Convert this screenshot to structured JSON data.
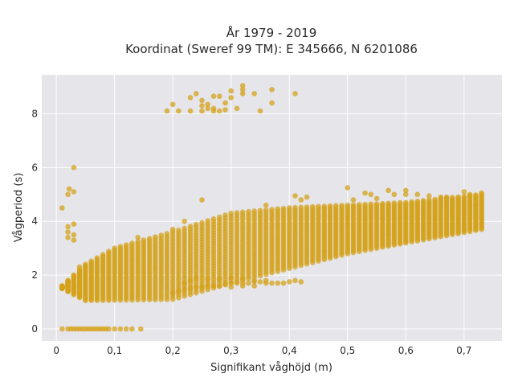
{
  "chart_data": {
    "type": "scatter",
    "title_line1": "År 1979 - 2019",
    "title_line2": "Koordinat (Sweref 99 TM): E 345666, N 6201086",
    "xlabel": "Signifikant våghöjd (m)",
    "ylabel": "Vågperiod (s)",
    "xlim": [
      -0.025,
      0.765
    ],
    "ylim": [
      -0.45,
      9.45
    ],
    "x_ticks": [
      0,
      0.1,
      0.2,
      0.3,
      0.4,
      0.5,
      0.6,
      0.7
    ],
    "x_tick_labels": [
      "0",
      "0,1",
      "0,2",
      "0,3",
      "0,4",
      "0,5",
      "0,6",
      "0,7"
    ],
    "y_ticks": [
      0,
      2,
      4,
      6,
      8
    ],
    "y_tick_labels": [
      "0",
      "2",
      "4",
      "6",
      "8"
    ],
    "grid": true,
    "marker_color": "#D4A21A",
    "plot_background": "#E5E5EA",
    "point_groups": [
      {
        "x_range": [
          0.01,
          0.73
        ],
        "x_step": 0.01,
        "lower_bound": [
          [
            0.01,
            1.5
          ],
          [
            0.05,
            1.05
          ],
          [
            0.2,
            1.1
          ],
          [
            0.3,
            1.7
          ],
          [
            0.5,
            2.8
          ],
          [
            0.6,
            3.2
          ],
          [
            0.73,
            3.7
          ]
        ],
        "upper_bound": [
          [
            0.01,
            1.6
          ],
          [
            0.05,
            2.4
          ],
          [
            0.1,
            3.0
          ],
          [
            0.2,
            3.6
          ],
          [
            0.3,
            4.3
          ],
          [
            0.4,
            4.5
          ],
          [
            0.5,
            4.6
          ],
          [
            0.6,
            4.7
          ],
          [
            0.73,
            5.0
          ]
        ],
        "points_per_column": 26
      }
    ],
    "points": [
      [
        0.01,
        0.0
      ],
      [
        0.02,
        0.0
      ],
      [
        0.025,
        0.0
      ],
      [
        0.03,
        0.0
      ],
      [
        0.035,
        0.0
      ],
      [
        0.04,
        0.0
      ],
      [
        0.045,
        0.0
      ],
      [
        0.05,
        0.0
      ],
      [
        0.055,
        0.0
      ],
      [
        0.06,
        0.0
      ],
      [
        0.065,
        0.0
      ],
      [
        0.07,
        0.0
      ],
      [
        0.075,
        0.0
      ],
      [
        0.08,
        0.0
      ],
      [
        0.085,
        0.0
      ],
      [
        0.09,
        0.0
      ],
      [
        0.1,
        0.0
      ],
      [
        0.11,
        0.0
      ],
      [
        0.12,
        0.0
      ],
      [
        0.13,
        0.0
      ],
      [
        0.145,
        0.0
      ],
      [
        0.01,
        4.5
      ],
      [
        0.02,
        5.0
      ],
      [
        0.022,
        5.2
      ],
      [
        0.03,
        5.1
      ],
      [
        0.03,
        6.0
      ],
      [
        0.02,
        3.8
      ],
      [
        0.02,
        3.6
      ],
      [
        0.02,
        3.4
      ],
      [
        0.03,
        3.9
      ],
      [
        0.03,
        3.5
      ],
      [
        0.03,
        3.3
      ],
      [
        0.04,
        2.3
      ],
      [
        0.04,
        2.0
      ],
      [
        0.14,
        3.4
      ],
      [
        0.2,
        3.7
      ],
      [
        0.22,
        4.0
      ],
      [
        0.25,
        4.8
      ],
      [
        0.36,
        4.6
      ],
      [
        0.41,
        4.95
      ],
      [
        0.42,
        4.8
      ],
      [
        0.43,
        4.9
      ],
      [
        0.5,
        5.25
      ],
      [
        0.51,
        4.8
      ],
      [
        0.53,
        5.05
      ],
      [
        0.54,
        5.0
      ],
      [
        0.55,
        4.85
      ],
      [
        0.57,
        5.15
      ],
      [
        0.58,
        5.0
      ],
      [
        0.6,
        5.15
      ],
      [
        0.6,
        5.0
      ],
      [
        0.62,
        5.0
      ],
      [
        0.64,
        4.95
      ],
      [
        0.66,
        4.9
      ],
      [
        0.67,
        4.9
      ],
      [
        0.7,
        5.1
      ],
      [
        0.71,
        5.0
      ],
      [
        0.73,
        5.05
      ],
      [
        0.69,
        4.7
      ],
      [
        0.72,
        4.6
      ],
      [
        0.19,
        8.1
      ],
      [
        0.2,
        8.35
      ],
      [
        0.21,
        8.1
      ],
      [
        0.23,
        8.1
      ],
      [
        0.23,
        8.6
      ],
      [
        0.24,
        8.75
      ],
      [
        0.25,
        8.5
      ],
      [
        0.25,
        8.3
      ],
      [
        0.25,
        8.1
      ],
      [
        0.26,
        8.2
      ],
      [
        0.26,
        8.35
      ],
      [
        0.27,
        8.1
      ],
      [
        0.27,
        8.2
      ],
      [
        0.27,
        8.65
      ],
      [
        0.28,
        8.65
      ],
      [
        0.28,
        8.1
      ],
      [
        0.29,
        8.15
      ],
      [
        0.29,
        8.4
      ],
      [
        0.3,
        8.6
      ],
      [
        0.3,
        8.85
      ],
      [
        0.31,
        8.2
      ],
      [
        0.32,
        8.75
      ],
      [
        0.32,
        9.05
      ],
      [
        0.32,
        8.9
      ],
      [
        0.34,
        8.75
      ],
      [
        0.35,
        8.1
      ],
      [
        0.37,
        8.4
      ],
      [
        0.37,
        8.9
      ],
      [
        0.41,
        8.75
      ],
      [
        0.2,
        1.35
      ],
      [
        0.21,
        1.4
      ],
      [
        0.22,
        1.45
      ],
      [
        0.23,
        1.5
      ],
      [
        0.24,
        1.55
      ],
      [
        0.25,
        1.55
      ],
      [
        0.26,
        1.6
      ],
      [
        0.27,
        1.6
      ],
      [
        0.28,
        1.6
      ],
      [
        0.29,
        1.65
      ],
      [
        0.3,
        1.7
      ],
      [
        0.31,
        1.7
      ],
      [
        0.32,
        1.7
      ],
      [
        0.33,
        1.7
      ],
      [
        0.34,
        1.75
      ],
      [
        0.35,
        1.75
      ],
      [
        0.36,
        1.7
      ],
      [
        0.37,
        1.7
      ],
      [
        0.38,
        1.7
      ],
      [
        0.39,
        1.7
      ],
      [
        0.4,
        1.75
      ],
      [
        0.41,
        1.8
      ],
      [
        0.42,
        1.75
      ],
      [
        0.22,
        1.7
      ],
      [
        0.23,
        1.8
      ],
      [
        0.24,
        1.9
      ],
      [
        0.26,
        1.85
      ],
      [
        0.28,
        1.85
      ],
      [
        0.3,
        1.9
      ],
      [
        0.32,
        1.85
      ],
      [
        0.34,
        1.8
      ],
      [
        0.36,
        1.8
      ],
      [
        0.3,
        1.55
      ],
      [
        0.32,
        1.6
      ],
      [
        0.34,
        1.6
      ]
    ]
  }
}
